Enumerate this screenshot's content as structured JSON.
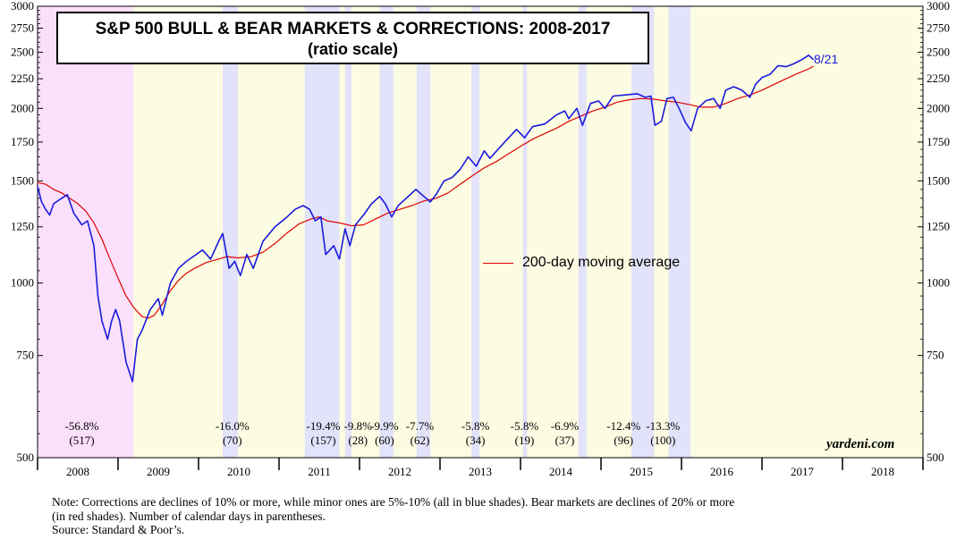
{
  "chart_data": {
    "type": "line",
    "title": "S&P 500 BULL & BEAR MARKETS & CORRECTIONS: 2008-2017",
    "subtitle": "(ratio scale)",
    "y_scale": "log",
    "ylim": [
      500,
      3000
    ],
    "y_ticks": [
      500,
      750,
      1000,
      1250,
      1500,
      1750,
      2000,
      2250,
      2500,
      2750,
      3000
    ],
    "x_range": [
      2008.0,
      2019.0
    ],
    "x_tick_labels": [
      "2008",
      "2009",
      "2010",
      "2011",
      "2012",
      "2013",
      "2014",
      "2015",
      "2016",
      "2017",
      "2018"
    ],
    "end_label": "8/21",
    "legend_label": "200-day moving average",
    "colors": {
      "price": "#1a1adb",
      "ma": "#e00000",
      "bear_shade": "#fbe0fb",
      "correction_shade": "#e2e2fa",
      "bull_shade": "#fcfce2"
    },
    "series": [
      {
        "name": "S&P 500",
        "points": [
          [
            2008.0,
            1468
          ],
          [
            2008.05,
            1380
          ],
          [
            2008.1,
            1340
          ],
          [
            2008.15,
            1310
          ],
          [
            2008.2,
            1370
          ],
          [
            2008.3,
            1400
          ],
          [
            2008.37,
            1420
          ],
          [
            2008.45,
            1320
          ],
          [
            2008.55,
            1260
          ],
          [
            2008.62,
            1280
          ],
          [
            2008.7,
            1160
          ],
          [
            2008.75,
            950
          ],
          [
            2008.8,
            860
          ],
          [
            2008.87,
            800
          ],
          [
            2008.92,
            860
          ],
          [
            2008.97,
            900
          ],
          [
            2009.02,
            860
          ],
          [
            2009.1,
            730
          ],
          [
            2009.18,
            676
          ],
          [
            2009.24,
            800
          ],
          [
            2009.3,
            830
          ],
          [
            2009.4,
            900
          ],
          [
            2009.5,
            940
          ],
          [
            2009.55,
            880
          ],
          [
            2009.65,
            1000
          ],
          [
            2009.75,
            1060
          ],
          [
            2009.85,
            1090
          ],
          [
            2009.95,
            1115
          ],
          [
            2010.05,
            1140
          ],
          [
            2010.15,
            1100
          ],
          [
            2010.25,
            1180
          ],
          [
            2010.3,
            1217
          ],
          [
            2010.38,
            1060
          ],
          [
            2010.45,
            1090
          ],
          [
            2010.52,
            1030
          ],
          [
            2010.6,
            1120
          ],
          [
            2010.68,
            1060
          ],
          [
            2010.8,
            1180
          ],
          [
            2010.95,
            1250
          ],
          [
            2011.1,
            1300
          ],
          [
            2011.2,
            1340
          ],
          [
            2011.3,
            1360
          ],
          [
            2011.38,
            1340
          ],
          [
            2011.45,
            1280
          ],
          [
            2011.52,
            1300
          ],
          [
            2011.58,
            1120
          ],
          [
            2011.68,
            1160
          ],
          [
            2011.75,
            1100
          ],
          [
            2011.82,
            1240
          ],
          [
            2011.88,
            1160
          ],
          [
            2011.95,
            1260
          ],
          [
            2012.05,
            1310
          ],
          [
            2012.15,
            1370
          ],
          [
            2012.25,
            1410
          ],
          [
            2012.32,
            1370
          ],
          [
            2012.4,
            1300
          ],
          [
            2012.48,
            1360
          ],
          [
            2012.58,
            1400
          ],
          [
            2012.7,
            1450
          ],
          [
            2012.8,
            1410
          ],
          [
            2012.88,
            1380
          ],
          [
            2012.95,
            1420
          ],
          [
            2013.05,
            1500
          ],
          [
            2013.15,
            1520
          ],
          [
            2013.25,
            1570
          ],
          [
            2013.35,
            1650
          ],
          [
            2013.45,
            1590
          ],
          [
            2013.55,
            1690
          ],
          [
            2013.62,
            1640
          ],
          [
            2013.72,
            1700
          ],
          [
            2013.82,
            1760
          ],
          [
            2013.95,
            1840
          ],
          [
            2014.05,
            1780
          ],
          [
            2014.15,
            1860
          ],
          [
            2014.3,
            1880
          ],
          [
            2014.45,
            1950
          ],
          [
            2014.55,
            1980
          ],
          [
            2014.6,
            1920
          ],
          [
            2014.7,
            2000
          ],
          [
            2014.77,
            1870
          ],
          [
            2014.87,
            2040
          ],
          [
            2014.97,
            2060
          ],
          [
            2015.05,
            2000
          ],
          [
            2015.15,
            2100
          ],
          [
            2015.3,
            2110
          ],
          [
            2015.45,
            2120
          ],
          [
            2015.55,
            2090
          ],
          [
            2015.62,
            2100
          ],
          [
            2015.67,
            1870
          ],
          [
            2015.75,
            1900
          ],
          [
            2015.82,
            2080
          ],
          [
            2015.9,
            2090
          ],
          [
            2015.97,
            2000
          ],
          [
            2016.05,
            1890
          ],
          [
            2016.12,
            1830
          ],
          [
            2016.2,
            2000
          ],
          [
            2016.3,
            2060
          ],
          [
            2016.4,
            2080
          ],
          [
            2016.48,
            2000
          ],
          [
            2016.55,
            2150
          ],
          [
            2016.65,
            2180
          ],
          [
            2016.75,
            2150
          ],
          [
            2016.85,
            2090
          ],
          [
            2016.92,
            2200
          ],
          [
            2017.0,
            2260
          ],
          [
            2017.1,
            2290
          ],
          [
            2017.2,
            2370
          ],
          [
            2017.3,
            2360
          ],
          [
            2017.4,
            2390
          ],
          [
            2017.5,
            2430
          ],
          [
            2017.58,
            2470
          ],
          [
            2017.64,
            2428
          ]
        ]
      },
      {
        "name": "200-day moving average",
        "points": [
          [
            2008.0,
            1490
          ],
          [
            2008.1,
            1480
          ],
          [
            2008.2,
            1450
          ],
          [
            2008.3,
            1430
          ],
          [
            2008.4,
            1400
          ],
          [
            2008.5,
            1370
          ],
          [
            2008.6,
            1330
          ],
          [
            2008.7,
            1270
          ],
          [
            2008.8,
            1190
          ],
          [
            2008.9,
            1100
          ],
          [
            2009.0,
            1020
          ],
          [
            2009.1,
            950
          ],
          [
            2009.2,
            905
          ],
          [
            2009.3,
            875
          ],
          [
            2009.38,
            870
          ],
          [
            2009.45,
            880
          ],
          [
            2009.55,
            920
          ],
          [
            2009.65,
            970
          ],
          [
            2009.75,
            1010
          ],
          [
            2009.85,
            1040
          ],
          [
            2009.95,
            1060
          ],
          [
            2010.1,
            1085
          ],
          [
            2010.25,
            1100
          ],
          [
            2010.35,
            1110
          ],
          [
            2010.5,
            1105
          ],
          [
            2010.65,
            1110
          ],
          [
            2010.8,
            1130
          ],
          [
            2010.95,
            1170
          ],
          [
            2011.1,
            1220
          ],
          [
            2011.25,
            1265
          ],
          [
            2011.4,
            1290
          ],
          [
            2011.5,
            1300
          ],
          [
            2011.6,
            1280
          ],
          [
            2011.75,
            1270
          ],
          [
            2011.9,
            1255
          ],
          [
            2012.05,
            1260
          ],
          [
            2012.2,
            1290
          ],
          [
            2012.35,
            1320
          ],
          [
            2012.5,
            1340
          ],
          [
            2012.65,
            1360
          ],
          [
            2012.8,
            1385
          ],
          [
            2012.95,
            1400
          ],
          [
            2013.1,
            1430
          ],
          [
            2013.25,
            1480
          ],
          [
            2013.4,
            1530
          ],
          [
            2013.55,
            1580
          ],
          [
            2013.7,
            1620
          ],
          [
            2013.85,
            1670
          ],
          [
            2014.0,
            1720
          ],
          [
            2014.15,
            1770
          ],
          [
            2014.3,
            1810
          ],
          [
            2014.45,
            1850
          ],
          [
            2014.6,
            1900
          ],
          [
            2014.75,
            1940
          ],
          [
            2014.9,
            1980
          ],
          [
            2015.05,
            2010
          ],
          [
            2015.2,
            2050
          ],
          [
            2015.35,
            2070
          ],
          [
            2015.5,
            2080
          ],
          [
            2015.65,
            2075
          ],
          [
            2015.8,
            2060
          ],
          [
            2015.95,
            2050
          ],
          [
            2016.1,
            2030
          ],
          [
            2016.25,
            2010
          ],
          [
            2016.4,
            2010
          ],
          [
            2016.55,
            2040
          ],
          [
            2016.7,
            2080
          ],
          [
            2016.85,
            2110
          ],
          [
            2017.0,
            2150
          ],
          [
            2017.15,
            2200
          ],
          [
            2017.3,
            2250
          ],
          [
            2017.45,
            2300
          ],
          [
            2017.58,
            2340
          ],
          [
            2017.64,
            2365
          ]
        ]
      }
    ],
    "shaded_periods": [
      {
        "kind": "bear",
        "start": 2008.0,
        "end": 2009.19
      },
      {
        "kind": "correction",
        "start": 2010.3,
        "end": 2010.49
      },
      {
        "kind": "correction",
        "start": 2011.32,
        "end": 2011.75
      },
      {
        "kind": "correction",
        "start": 2011.82,
        "end": 2011.9
      },
      {
        "kind": "correction",
        "start": 2012.25,
        "end": 2012.42
      },
      {
        "kind": "correction",
        "start": 2012.71,
        "end": 2012.88
      },
      {
        "kind": "correction",
        "start": 2013.39,
        "end": 2013.49
      },
      {
        "kind": "correction",
        "start": 2014.03,
        "end": 2014.08
      },
      {
        "kind": "correction",
        "start": 2014.72,
        "end": 2014.82
      },
      {
        "kind": "correction",
        "start": 2015.38,
        "end": 2015.66
      },
      {
        "kind": "correction",
        "start": 2015.84,
        "end": 2016.11
      }
    ],
    "declines": [
      {
        "pct": "-56.8%",
        "days": "(517)",
        "x": 2008.55
      },
      {
        "pct": "-16.0%",
        "days": "(70)",
        "x": 2010.42
      },
      {
        "pct": "-19.4%",
        "days": "(157)",
        "x": 2011.55
      },
      {
        "pct": "-9.8%",
        "days": "(28)",
        "x": 2011.98
      },
      {
        "pct": "-9.9%",
        "days": "(60)",
        "x": 2012.31
      },
      {
        "pct": "-7.7%",
        "days": "(62)",
        "x": 2012.75
      },
      {
        "pct": "-5.8%",
        "days": "(34)",
        "x": 2013.44
      },
      {
        "pct": "-5.8%",
        "days": "(19)",
        "x": 2014.05
      },
      {
        "pct": "-6.9%",
        "days": "(37)",
        "x": 2014.55
      },
      {
        "pct": "-12.4%",
        "days": "(96)",
        "x": 2015.28
      },
      {
        "pct": "-13.3%",
        "days": "(100)",
        "x": 2015.77
      }
    ]
  },
  "brand": "yardeni.com",
  "note_line1": "Note: Corrections are declines of 10% or more, while minor ones are 5%-10% (all in blue shades).  Bear markets are declines of 20% or more",
  "note_line2": "(in red shades). Number of calendar days in parentheses.",
  "note_line3": "Source: Standard & Poor’s."
}
